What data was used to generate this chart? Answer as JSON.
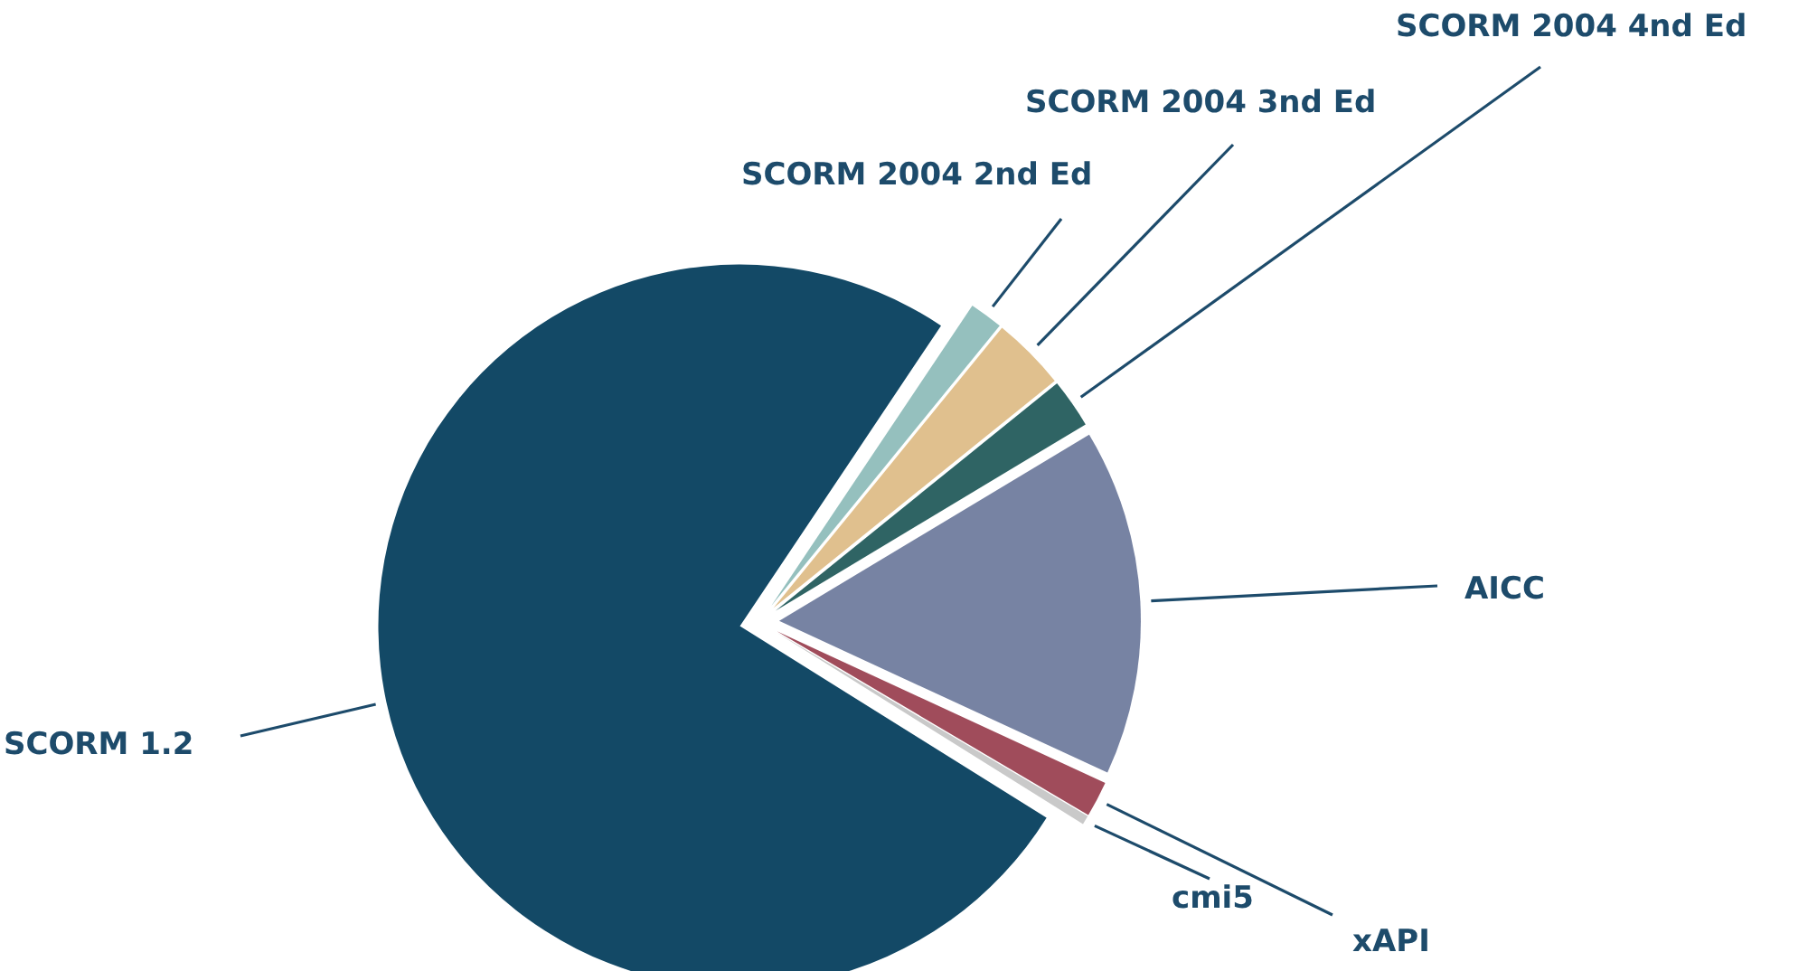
{
  "chart_data": {
    "type": "pie",
    "categories": [
      "SCORM 1.2",
      "SCORM 2004 2nd Ed",
      "SCORM 2004 3nd Ed",
      "SCORM 2004 4nd Ed",
      "AICC",
      "xAPI",
      "cmi5"
    ],
    "values": [
      75.5,
      1.5,
      3.3,
      2.2,
      15.5,
      1.6,
      0.4
    ],
    "colors": [
      "#134966",
      "#95c0be",
      "#e0c08e",
      "#2f6464",
      "#7783a3",
      "#a04c5b",
      "#c9c9c9"
    ]
  }
}
